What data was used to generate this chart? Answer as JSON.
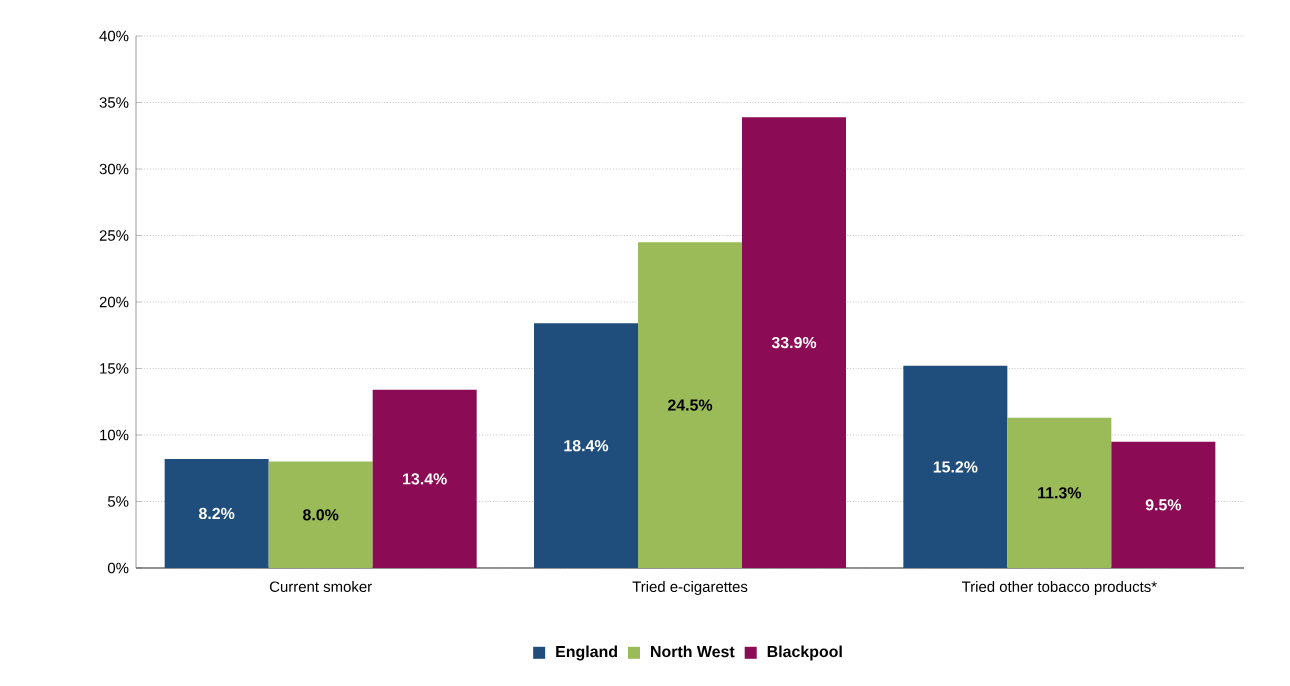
{
  "chart_data": {
    "type": "bar",
    "categories": [
      "Current smoker",
      "Tried e-cigarettes",
      "Tried other tobacco products*"
    ],
    "series": [
      {
        "name": "England",
        "color": "#1f4e7d",
        "values": [
          8.2,
          18.4,
          15.2
        ],
        "value_labels": [
          "8.2%",
          "18.4%",
          "15.2%"
        ]
      },
      {
        "name": "North West",
        "color": "#9bbb59",
        "values": [
          8.0,
          24.5,
          11.3
        ],
        "value_labels": [
          "8.0%",
          "24.5%",
          "11.3%"
        ]
      },
      {
        "name": "Blackpool",
        "color": "#8b0b55",
        "values": [
          13.4,
          33.9,
          9.5
        ],
        "value_labels": [
          "13.4%",
          "33.9%",
          "9.5%"
        ]
      }
    ],
    "ylim": [
      0,
      40
    ],
    "yticks": [
      {
        "value": 0,
        "label": "0%"
      },
      {
        "value": 5,
        "label": "5%"
      },
      {
        "value": 10,
        "label": "10%"
      },
      {
        "value": 15,
        "label": "15%"
      },
      {
        "value": 20,
        "label": "20%"
      },
      {
        "value": 25,
        "label": "25%"
      },
      {
        "value": 30,
        "label": "30%"
      },
      {
        "value": 35,
        "label": "35%"
      },
      {
        "value": 40,
        "label": "40%"
      }
    ],
    "grid": "y",
    "legend": "bottom"
  }
}
